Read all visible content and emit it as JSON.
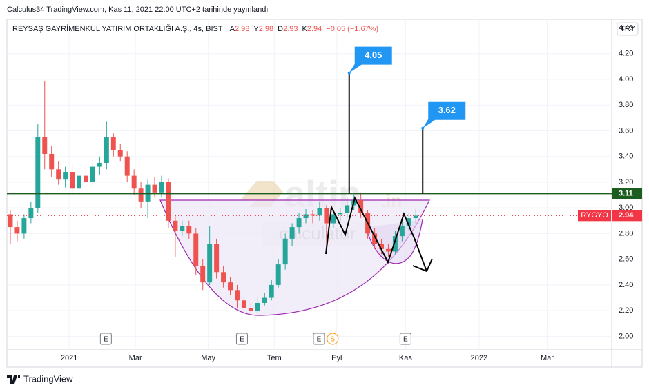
{
  "header": "Calculus34 TradingView.com, Kas 11, 2021 22:00 UTC+2 tarihinde yayınlandı",
  "footer": "TradingView",
  "watermark": {
    "brand": "altin",
    "suffix": ".in",
    "sub": "calculator"
  },
  "chart_data": {
    "type": "candlestick",
    "title": "REYSAŞ GAYRİMENKUL YATIRIM ORTAKLIĞI A.Ş., 4s, BIST",
    "legend_items": [
      {
        "label": "A",
        "value": 2.98
      },
      {
        "label": "Y",
        "value": 2.98
      },
      {
        "label": "D",
        "value": 2.93
      },
      {
        "label": "K",
        "value": 2.94
      }
    ],
    "change": "−0.05 (−1.67%)",
    "currency": "TRY",
    "up_color": "#26a69a",
    "down_color": "#ef5350",
    "categories": [
      null,
      null,
      null,
      null,
      null,
      null,
      null,
      null,
      null,
      null,
      null,
      null,
      null,
      null,
      null,
      null,
      null,
      null,
      null,
      null,
      null,
      null,
      null,
      null,
      null,
      null,
      null,
      null,
      null,
      null,
      null,
      null,
      null,
      null,
      null,
      null,
      null,
      null,
      null,
      null,
      null,
      null,
      null,
      null,
      null,
      null,
      null,
      null,
      null,
      null,
      null,
      null,
      null,
      null,
      null,
      null,
      null,
      null,
      null,
      null
    ],
    "open": [
      2.95,
      2.85,
      2.8,
      2.92,
      3.0,
      3.55,
      3.42,
      3.3,
      3.22,
      3.28,
      3.15,
      3.25,
      3.2,
      3.32,
      3.35,
      3.55,
      3.45,
      3.4,
      3.25,
      3.15,
      3.05,
      3.18,
      3.12,
      3.2,
      2.9,
      2.82,
      2.86,
      2.8,
      2.55,
      2.42,
      2.72,
      2.5,
      2.42,
      2.36,
      2.28,
      2.22,
      2.2,
      2.26,
      2.3,
      2.4,
      2.56,
      2.76,
      2.85,
      2.92,
      2.95,
      2.94,
      3.0,
      2.88,
      2.95,
      2.96,
      3.02,
      3.06,
      2.96,
      2.8,
      2.72,
      2.68,
      2.66,
      2.78,
      2.86,
      2.92
    ],
    "high": [
      2.98,
      2.9,
      2.95,
      3.05,
      3.65,
      3.99,
      3.48,
      3.36,
      3.32,
      3.34,
      3.28,
      3.3,
      3.37,
      3.4,
      3.67,
      3.58,
      3.5,
      3.44,
      3.3,
      3.2,
      3.22,
      3.24,
      3.25,
      3.23,
      2.95,
      2.9,
      2.9,
      2.84,
      2.6,
      2.86,
      2.76,
      2.55,
      2.46,
      2.4,
      2.32,
      2.26,
      2.3,
      2.34,
      2.44,
      2.6,
      2.8,
      2.88,
      2.96,
      2.99,
      2.98,
      3.05,
      3.02,
      2.98,
      3.0,
      3.08,
      3.1,
      3.12,
      2.98,
      2.84,
      2.76,
      2.72,
      2.82,
      2.9,
      2.96,
      2.99
    ],
    "low": [
      2.72,
      2.74,
      2.76,
      2.88,
      2.96,
      3.3,
      3.24,
      3.18,
      3.16,
      3.1,
      3.1,
      3.14,
      3.16,
      3.26,
      3.3,
      3.4,
      3.36,
      3.2,
      3.1,
      3.0,
      2.92,
      3.08,
      3.08,
      2.84,
      2.62,
      2.78,
      2.76,
      2.48,
      2.36,
      2.4,
      2.45,
      2.38,
      2.32,
      2.22,
      2.18,
      2.16,
      2.18,
      2.24,
      2.28,
      2.38,
      2.52,
      2.7,
      2.8,
      2.88,
      2.88,
      2.9,
      2.66,
      2.84,
      2.9,
      2.92,
      2.98,
      2.92,
      2.76,
      2.68,
      2.64,
      2.62,
      2.64,
      2.74,
      2.82,
      2.88
    ],
    "close": [
      2.85,
      2.8,
      2.92,
      3.0,
      3.55,
      3.42,
      3.3,
      3.22,
      3.28,
      3.15,
      3.25,
      3.2,
      3.32,
      3.35,
      3.55,
      3.45,
      3.4,
      3.25,
      3.15,
      3.05,
      3.18,
      3.12,
      3.2,
      2.9,
      2.82,
      2.86,
      2.8,
      2.55,
      2.42,
      2.72,
      2.5,
      2.42,
      2.36,
      2.28,
      2.22,
      2.2,
      2.26,
      2.3,
      2.4,
      2.56,
      2.76,
      2.85,
      2.92,
      2.95,
      2.94,
      3.0,
      2.88,
      2.95,
      2.96,
      3.02,
      3.06,
      2.96,
      2.8,
      2.72,
      2.68,
      2.66,
      2.78,
      2.86,
      2.92,
      2.94
    ],
    "xticks": [
      {
        "value": 9.05,
        "label": "2021"
      },
      {
        "value": 18.7,
        "label": "Mar"
      },
      {
        "value": 29.3,
        "label": "May"
      },
      {
        "value": 38.9,
        "label": "Tem"
      },
      {
        "value": 48.0,
        "label": "Eyl"
      },
      {
        "value": 58.0,
        "label": "Kas"
      },
      {
        "value": 68.7,
        "label": "2022"
      },
      {
        "value": 78.6,
        "label": "Mar"
      }
    ],
    "ylim": [
      1.9,
      4.467
    ],
    "yticks": [
      {
        "value": 2.0,
        "label": "2.00"
      },
      {
        "value": 2.2,
        "label": "2.20"
      },
      {
        "value": 2.4,
        "label": "2.40"
      },
      {
        "value": 2.6,
        "label": "2.60"
      },
      {
        "value": 2.8,
        "label": "2.80"
      },
      {
        "value": 3.0,
        "label": "3.00"
      },
      {
        "value": 3.2,
        "label": "3.20"
      },
      {
        "value": 3.4,
        "label": "3.40"
      },
      {
        "value": 3.6,
        "label": "3.60"
      },
      {
        "value": 3.8,
        "label": "3.80"
      },
      {
        "value": 4.0,
        "label": "4.00"
      },
      {
        "value": 4.2,
        "label": "4.20"
      },
      {
        "value": 4.4,
        "label": "4.40"
      }
    ],
    "grid": true,
    "horizontal_lines": [
      {
        "value": 3.11,
        "color": "#1b5e20"
      },
      {
        "name": "RYGYO",
        "value": 2.94,
        "color": "#f23645"
      }
    ],
    "callouts": [
      {
        "value": 4.05,
        "x": 49.8
      },
      {
        "value": 3.62,
        "x": 60.5
      }
    ],
    "events": [
      {
        "x": 14.4,
        "label": "E"
      },
      {
        "x": 34.2,
        "label": "E"
      },
      {
        "x": 45.4,
        "label": "E"
      },
      {
        "x": 47.4,
        "label": "S"
      },
      {
        "x": 58.0,
        "label": "E"
      }
    ]
  }
}
